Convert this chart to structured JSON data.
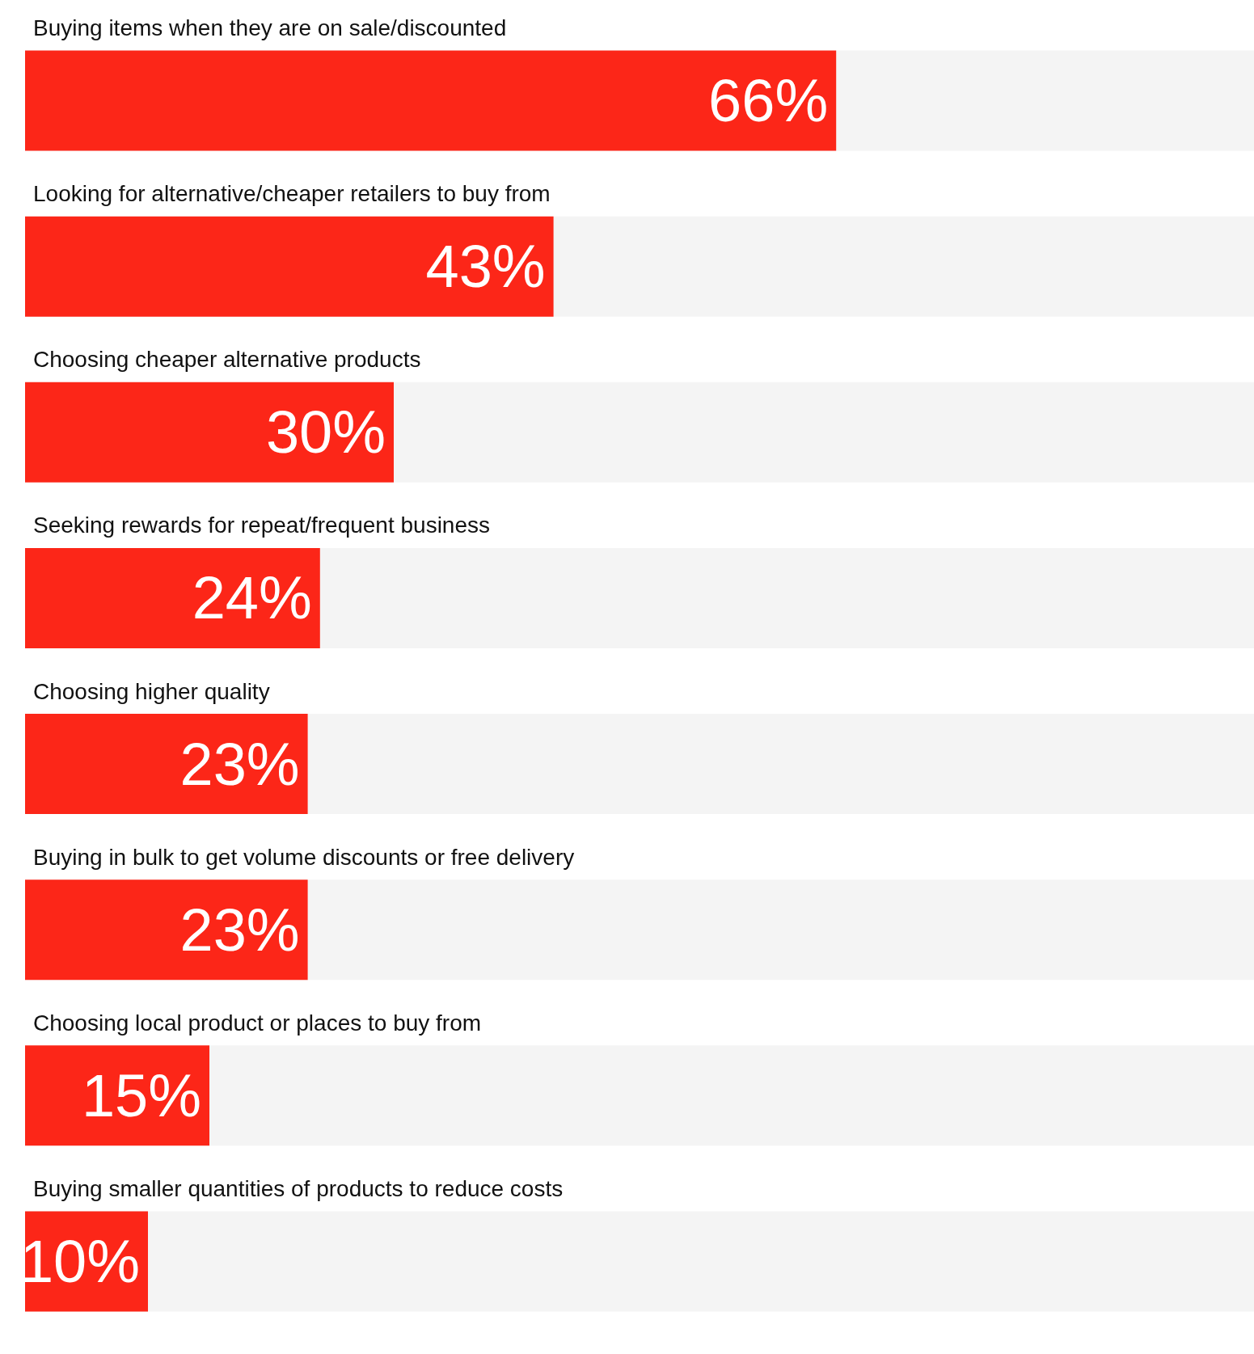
{
  "chart_data": {
    "type": "bar",
    "orientation": "horizontal",
    "categories": [
      "Buying items when they are on sale/discounted",
      "Looking for alternative/cheaper retailers to buy from",
      "Choosing cheaper alternative products",
      "Seeking rewards for repeat/frequent business",
      "Choosing higher quality",
      "Buying in bulk to get volume discounts or free delivery",
      "Choosing local product or places to buy from",
      "Buying smaller quantities of products to reduce costs"
    ],
    "values": [
      66,
      43,
      30,
      24,
      23,
      23,
      15,
      10
    ],
    "value_labels": [
      "66%",
      "43%",
      "30%",
      "24%",
      "23%",
      "23%",
      "15%",
      "10%"
    ],
    "color": "#fc2618",
    "xlim": [
      0,
      100
    ],
    "tick_labels": "y"
  }
}
